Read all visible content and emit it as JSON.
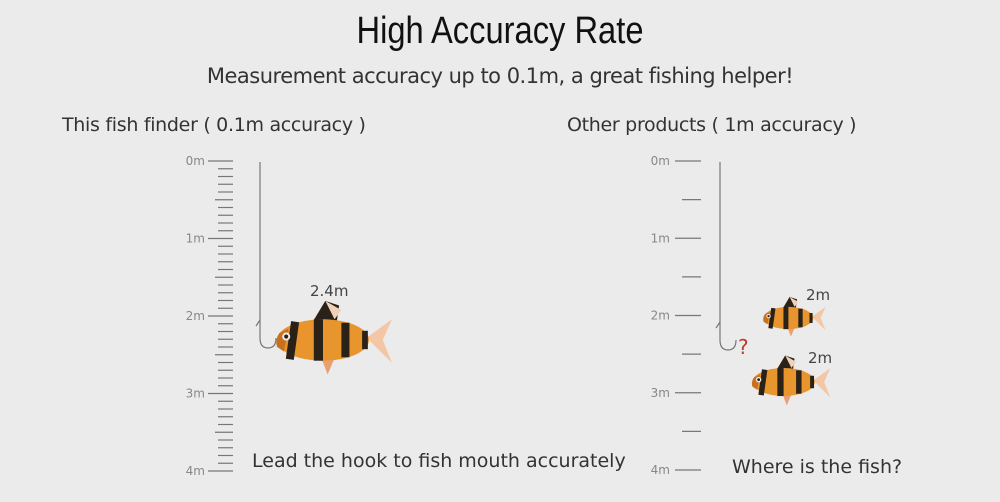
{
  "title": "High Accuracy Rate",
  "subtitle": "Measurement accuracy up to 0.1m, a great fishing helper!",
  "left_panel": {
    "heading": "This fish finder ( 0.1m accuracy )",
    "scale_labels": [
      "0m",
      "1m",
      "2m",
      "3m",
      "4m"
    ],
    "tick_step_m": 0.1,
    "fish_depth_label": "2.4m",
    "caption": "Lead the hook to fish mouth accurately"
  },
  "right_panel": {
    "heading": "Other products ( 1m accuracy )",
    "scale_labels": [
      "0m",
      "1m",
      "2m",
      "3m",
      "4m"
    ],
    "tick_step_m": 0.5,
    "question_mark": "?",
    "fish_depth_labels": [
      "2m",
      "2m"
    ],
    "caption": "Where is the fish?"
  },
  "colors": {
    "background": "#ebebeb",
    "question_mark": "#c0392b",
    "fish_body": "#e8952e",
    "fish_stripe": "#2a2218"
  },
  "icons": [
    "fish-icon",
    "fishing-hook-icon"
  ]
}
